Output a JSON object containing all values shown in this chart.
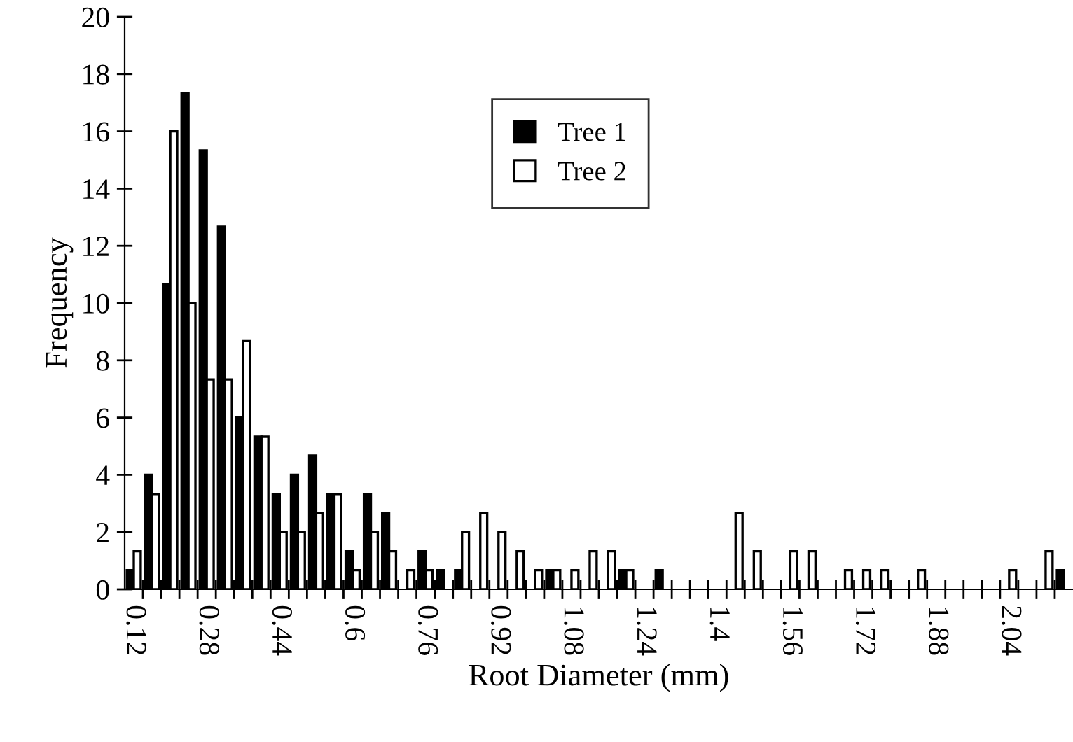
{
  "chart_data": {
    "type": "bar",
    "xlabel": "Root Diameter (mm)",
    "ylabel": "Frequency",
    "categories": [
      "0.12",
      null,
      null,
      null,
      "0.28",
      null,
      null,
      null,
      "0.44",
      null,
      null,
      null,
      "0.6",
      null,
      null,
      null,
      "0.76",
      null,
      null,
      null,
      "0.92",
      null,
      null,
      null,
      "1.08",
      null,
      null,
      null,
      "1.24",
      null,
      null,
      null,
      "1.4",
      null,
      null,
      null,
      "1.56",
      null,
      null,
      null,
      "1.72",
      null,
      null,
      null,
      "1.88",
      null,
      null,
      null,
      "2.04",
      null,
      null,
      null
    ],
    "series": [
      {
        "name": "Tree 1",
        "color": "#000000",
        "values": [
          0.67,
          4,
          10.67,
          17.33,
          15.33,
          12.67,
          6,
          5.33,
          3.33,
          4,
          4.67,
          3.33,
          1.33,
          3.33,
          2.67,
          0,
          1.33,
          0.67,
          0.67,
          0,
          0,
          0,
          0,
          0.67,
          0,
          0,
          0,
          0.67,
          0,
          0.67,
          0,
          0,
          0,
          0,
          0,
          0,
          0,
          0,
          0,
          0,
          0,
          0,
          0,
          0,
          0,
          0,
          0,
          0,
          0,
          0,
          0,
          0.67
        ]
      },
      {
        "name": "Tree 2",
        "color": "#ffffff",
        "values": [
          1.33,
          3.33,
          16,
          10,
          7.33,
          7.33,
          8.67,
          5.33,
          2,
          2,
          2.67,
          3.33,
          0.67,
          2,
          1.33,
          0.67,
          0.67,
          0,
          2,
          2.67,
          2,
          1.33,
          0.67,
          0.67,
          0.67,
          1.33,
          1.33,
          0.67,
          0,
          0,
          0,
          0,
          0,
          2.67,
          1.33,
          0,
          1.33,
          1.33,
          0,
          0.67,
          0.67,
          0.67,
          0,
          0.67,
          0,
          0,
          0,
          0,
          0.67,
          0,
          1.33,
          0
        ]
      }
    ],
    "ylim": [
      0,
      20
    ],
    "yticks": [
      0,
      2,
      4,
      6,
      8,
      10,
      12,
      14,
      16,
      18,
      20
    ],
    "legend": "top"
  }
}
